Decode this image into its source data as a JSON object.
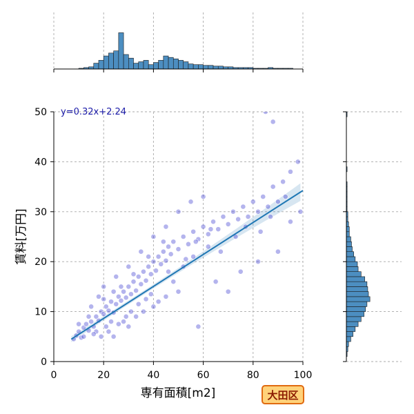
{
  "ward_label": "大田区",
  "chart_data": {
    "type": "scatter",
    "title": "",
    "xlabel": "専有面積[m2]",
    "ylabel": "賃料[万円]",
    "xlim": [
      0,
      100
    ],
    "ylim": [
      0,
      50
    ],
    "x_ticks": [
      0,
      20,
      40,
      60,
      80,
      100
    ],
    "y_ticks": [
      0,
      10,
      20,
      30,
      40,
      50
    ],
    "grid": true,
    "regression": {
      "equation": "y=0.32x+2.24",
      "slope": 0.32,
      "intercept": 2.24,
      "x_range": [
        7,
        100
      ],
      "color": "#1f77b4"
    },
    "point_color": "#3a3ad0",
    "bar_color": "#4c8ec1",
    "points": [
      [
        8,
        4.5
      ],
      [
        9,
        5.2
      ],
      [
        10,
        6
      ],
      [
        11,
        4.8
      ],
      [
        12,
        6.8
      ],
      [
        13,
        7.5
      ],
      [
        14,
        6.2
      ],
      [
        15,
        8
      ],
      [
        16,
        7
      ],
      [
        17,
        9
      ],
      [
        18,
        8.2
      ],
      [
        19,
        10
      ],
      [
        20,
        9.5
      ],
      [
        21,
        11
      ],
      [
        22,
        10.2
      ],
      [
        23,
        12
      ],
      [
        24,
        9.8
      ],
      [
        25,
        11.5
      ],
      [
        26,
        13
      ],
      [
        27,
        12.2
      ],
      [
        28,
        14
      ],
      [
        29,
        12.8
      ],
      [
        30,
        15
      ],
      [
        31,
        13.5
      ],
      [
        32,
        16
      ],
      [
        33,
        14.2
      ],
      [
        34,
        17
      ],
      [
        35,
        15.5
      ],
      [
        36,
        18
      ],
      [
        37,
        16.2
      ],
      [
        38,
        19
      ],
      [
        39,
        17.5
      ],
      [
        40,
        20
      ],
      [
        41,
        18.2
      ],
      [
        42,
        21
      ],
      [
        43,
        19.5
      ],
      [
        44,
        22
      ],
      [
        45,
        20.2
      ],
      [
        46,
        23
      ],
      [
        47,
        21.5
      ],
      [
        48,
        24
      ],
      [
        50,
        22.5
      ],
      [
        52,
        25
      ],
      [
        54,
        23.5
      ],
      [
        56,
        26
      ],
      [
        58,
        24.5
      ],
      [
        60,
        27
      ],
      [
        62,
        25.5
      ],
      [
        64,
        28
      ],
      [
        66,
        26.5
      ],
      [
        68,
        29
      ],
      [
        70,
        27.5
      ],
      [
        72,
        30
      ],
      [
        74,
        28.5
      ],
      [
        76,
        31
      ],
      [
        78,
        29
      ],
      [
        80,
        32
      ],
      [
        82,
        30
      ],
      [
        84,
        33
      ],
      [
        86,
        31
      ],
      [
        88,
        35
      ],
      [
        90,
        32
      ],
      [
        92,
        36
      ],
      [
        95,
        38
      ],
      [
        98,
        40
      ],
      [
        88,
        48
      ],
      [
        85,
        50
      ],
      [
        20,
        15
      ],
      [
        25,
        17
      ],
      [
        30,
        19
      ],
      [
        35,
        22
      ],
      [
        40,
        25
      ],
      [
        45,
        27
      ],
      [
        50,
        30
      ],
      [
        55,
        32
      ],
      [
        60,
        33
      ],
      [
        22,
        6
      ],
      [
        28,
        8
      ],
      [
        33,
        9
      ],
      [
        40,
        11
      ],
      [
        45,
        13
      ],
      [
        50,
        14
      ],
      [
        58,
        7
      ],
      [
        65,
        16
      ],
      [
        70,
        14
      ],
      [
        75,
        18
      ],
      [
        82,
        20
      ],
      [
        90,
        22
      ],
      [
        95,
        28
      ],
      [
        99,
        30
      ],
      [
        15,
        11
      ],
      [
        18,
        13
      ],
      [
        24,
        5
      ],
      [
        30,
        7
      ],
      [
        36,
        10
      ],
      [
        42,
        12
      ],
      [
        48,
        16
      ],
      [
        52,
        19
      ],
      [
        56,
        21
      ],
      [
        62,
        23
      ],
      [
        17,
        6
      ],
      [
        19,
        5
      ],
      [
        21,
        7
      ],
      [
        23,
        8
      ],
      [
        26,
        7.5
      ],
      [
        29,
        9
      ],
      [
        31,
        10
      ],
      [
        34,
        11.5
      ],
      [
        37,
        12.5
      ],
      [
        39,
        13.5
      ],
      [
        10,
        7.5
      ],
      [
        12,
        5
      ],
      [
        14,
        9
      ],
      [
        16,
        5.5
      ],
      [
        20,
        12.5
      ],
      [
        24,
        14
      ],
      [
        27,
        15
      ],
      [
        32,
        17.5
      ],
      [
        38,
        21
      ],
      [
        44,
        24
      ],
      [
        46,
        18
      ],
      [
        53,
        20.5
      ],
      [
        57,
        24
      ],
      [
        63,
        26.5
      ],
      [
        67,
        22
      ],
      [
        73,
        25
      ],
      [
        77,
        27
      ],
      [
        83,
        26
      ],
      [
        87,
        29
      ],
      [
        93,
        33
      ]
    ],
    "x_hist": {
      "bin_start": 0,
      "bin_width": 2,
      "counts": [
        0,
        0,
        0,
        0,
        0,
        1,
        2,
        3,
        8,
        12,
        18,
        22,
        25,
        50,
        20,
        15,
        8,
        10,
        12,
        6,
        9,
        12,
        18,
        16,
        14,
        12,
        10,
        7,
        6,
        6,
        5,
        5,
        4,
        4,
        3,
        3,
        2,
        2,
        2,
        2,
        1,
        1,
        1,
        2,
        1,
        1,
        1,
        1,
        0,
        0
      ],
      "max": 78
    },
    "y_hist": {
      "bin_start": 0,
      "bin_width": 1,
      "counts": [
        0,
        1,
        2,
        3,
        6,
        9,
        12,
        16,
        20,
        24,
        26,
        28,
        32,
        30,
        29,
        28,
        25,
        20,
        16,
        15,
        12,
        10,
        8,
        7,
        6,
        4,
        4,
        3,
        2,
        2,
        1,
        1,
        1,
        1,
        1,
        1,
        0,
        0,
        1,
        0,
        0,
        0,
        0,
        0,
        0,
        0,
        0,
        0,
        0,
        1
      ],
      "max": 75
    }
  }
}
